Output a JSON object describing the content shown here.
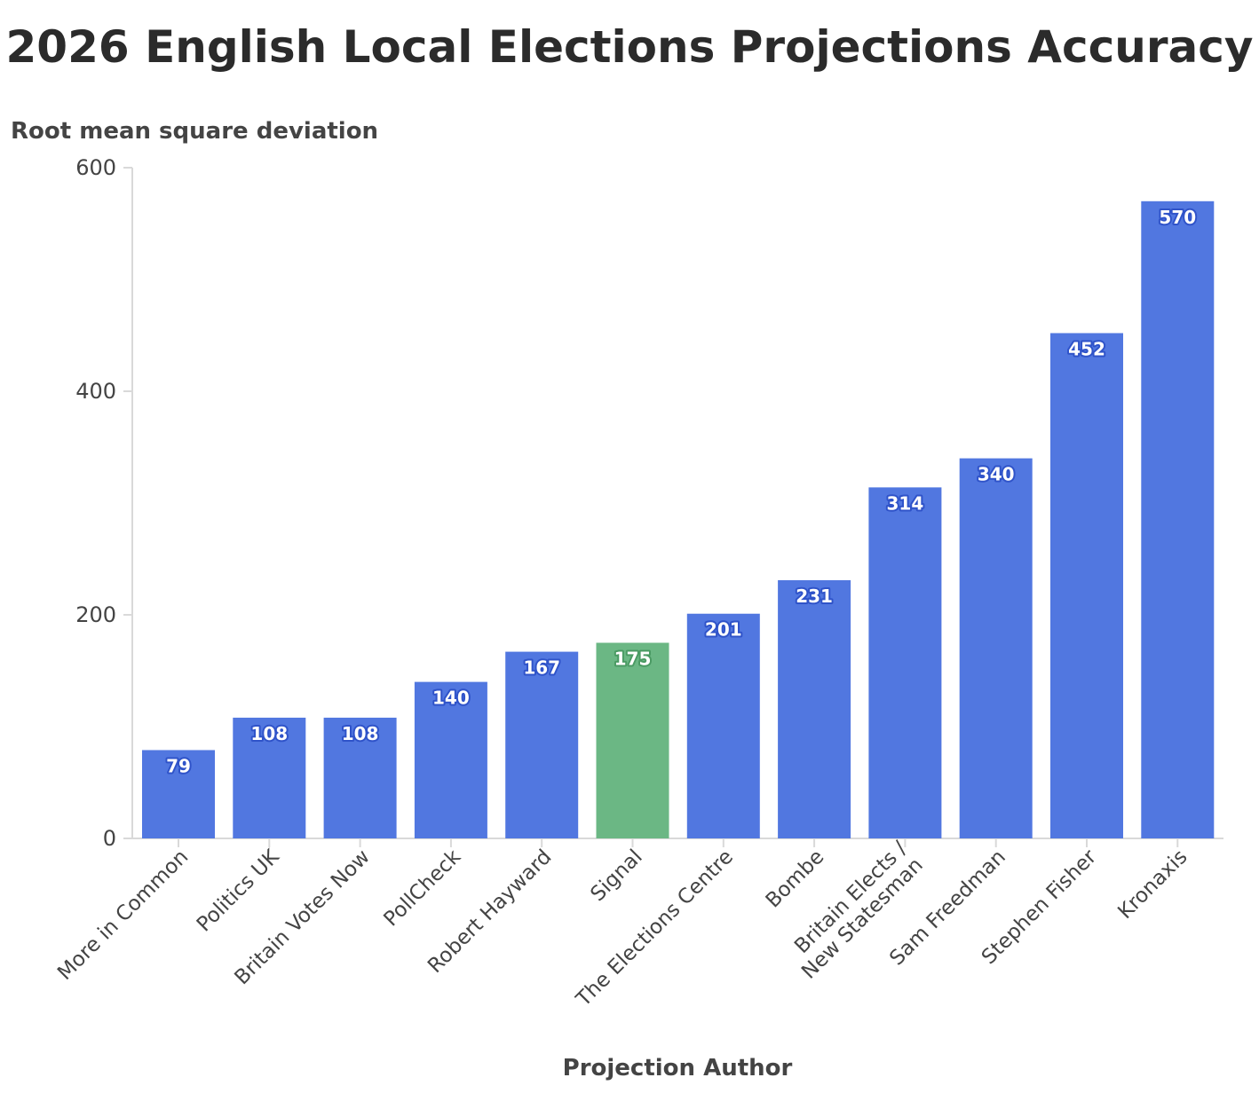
{
  "chart_data": {
    "type": "bar",
    "title": "2026 English Local Elections Projections Accuracy",
    "xlabel": "Projection Author",
    "ylabel": "Root mean square deviation",
    "ylim": [
      0,
      600
    ],
    "yticks": [
      "0",
      "200",
      "400",
      "600"
    ],
    "categories": [
      "More in Common",
      "Politics UK",
      "Britain Votes Now",
      "PollCheck",
      "Robert Hayward",
      "Signal",
      "The Elections Centre",
      "Bombe",
      "Britain Elects / New Statesman",
      "Sam Freedman",
      "Stephen Fisher",
      "Kronaxis"
    ],
    "values": [
      79,
      108,
      108,
      140,
      167,
      175,
      201,
      231,
      314,
      340,
      452,
      570
    ],
    "highlight_category": "Signal",
    "grid": false,
    "legend": "none",
    "colors": {
      "bar": "#5177e0",
      "bar_highlight": "#6bb784",
      "label_outline": "#2f53c9",
      "label_outline_highlight": "#4a9a63",
      "axis": "#d9d9d9",
      "text": "#444444",
      "title": "#2b2b2b"
    }
  }
}
